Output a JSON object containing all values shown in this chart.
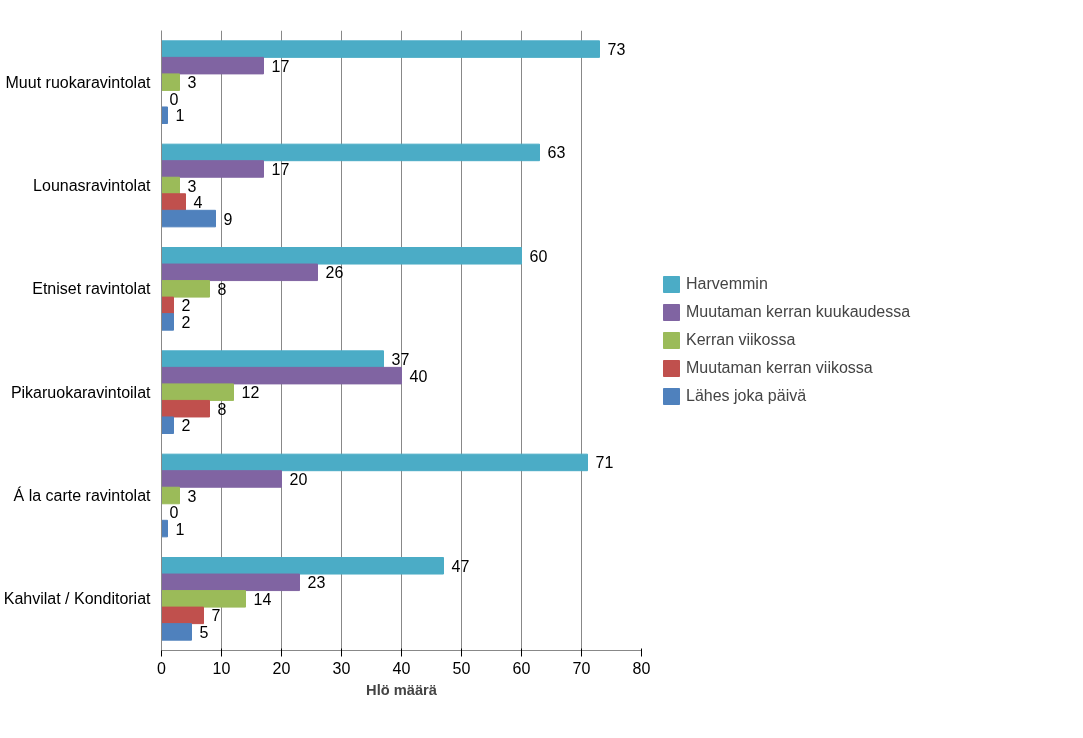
{
  "chart_data": {
    "type": "bar",
    "orientation": "horizontal",
    "xlabel": "Hlö määrä",
    "categories": [
      "Muut ruokaravintolat",
      "Lounasravintolat",
      "Etniset ravintolat",
      "Pikaruokaravintoilat",
      "Á la carte ravintolat",
      "Kahvilat / Konditoriat"
    ],
    "series": [
      {
        "name": "Harvemmin",
        "color": "#4bacc6",
        "values": [
          73,
          63,
          60,
          37,
          71,
          47
        ]
      },
      {
        "name": "Muutaman kerran kuukaudessa",
        "color": "#8064a2",
        "values": [
          17,
          17,
          26,
          40,
          20,
          23
        ]
      },
      {
        "name": "Kerran viikossa",
        "color": "#9bbb59",
        "values": [
          3,
          3,
          8,
          12,
          3,
          14
        ]
      },
      {
        "name": "Muutaman kerran viikossa",
        "color": "#c0504d",
        "values": [
          0,
          4,
          2,
          8,
          0,
          7
        ]
      },
      {
        "name": "Lähes joka päivä",
        "color": "#4f81bd",
        "values": [
          1,
          9,
          2,
          2,
          1,
          5
        ]
      }
    ],
    "xlim": [
      0,
      80
    ],
    "xticks": [
      0,
      10,
      20,
      30,
      40,
      50,
      60,
      70,
      80
    ],
    "grid": "x",
    "legend": "right",
    "data_labels": true
  }
}
